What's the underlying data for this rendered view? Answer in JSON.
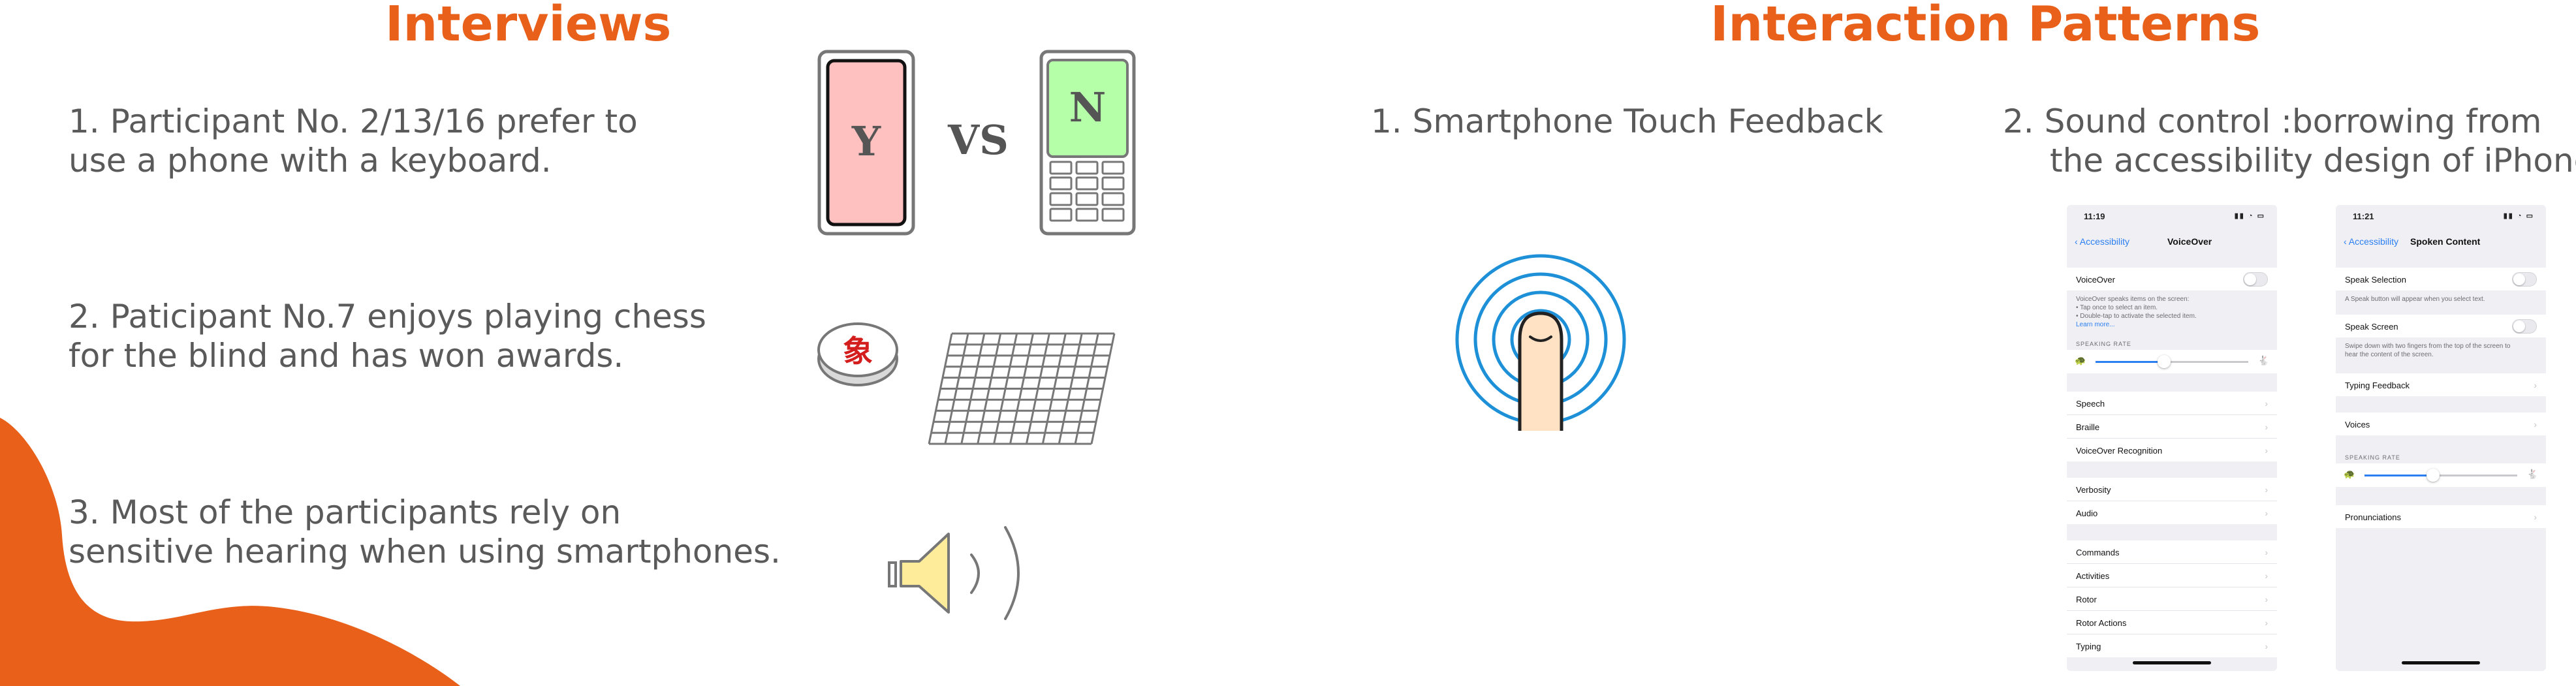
{
  "interviews": {
    "heading": "Interviews",
    "points": [
      {
        "line1": "1. Participant No. 2/13/16 prefer to",
        "line2": "use a phone with a keyboard."
      },
      {
        "line1": "2. Paticipant No.7 enjoys playing chess",
        "line2": "for the blind and has won awards."
      },
      {
        "line1": "3. Most of the participants rely on",
        "line2": "sensitive hearing when using smartphones."
      }
    ],
    "phone_compare": {
      "left_letter": "Y",
      "vs": "VS",
      "right_letter": "N"
    },
    "chess_piece_char": "象"
  },
  "patterns": {
    "heading": "Interaction Patterns",
    "point1": "1. Smartphone Touch Feedback",
    "point2": {
      "line1": "2. Sound control :borrowing from",
      "line2": "the accessibility design of iPhone"
    }
  },
  "voiceover_screen": {
    "time": "11:19",
    "back": "Accessibility",
    "title": "VoiceOver",
    "toggle_label": "VoiceOver",
    "desc_lines": [
      "VoiceOver speaks items on the screen:",
      "• Tap once to select an item.",
      "• Double-tap to activate the selected item."
    ],
    "learn_more": "Learn more...",
    "rate_header": "SPEAKING RATE",
    "rate_level": 0.45,
    "group1": [
      "Speech",
      "Braille",
      "VoiceOver Recognition"
    ],
    "group2": [
      "Verbosity",
      "Audio"
    ],
    "group3": [
      "Commands",
      "Activities",
      "Rotor",
      "Rotor Actions",
      "Typing"
    ]
  },
  "spoken_screen": {
    "time": "11:21",
    "back": "Accessibility",
    "title": "Spoken Content",
    "speak_selection": "Speak Selection",
    "speak_selection_desc": "A Speak button will appear when you select text.",
    "speak_screen": "Speak Screen",
    "speak_screen_desc": [
      "Swipe down with two fingers from the top of the screen to",
      "hear the content of the screen."
    ],
    "typing_feedback": "Typing Feedback",
    "voices": "Voices",
    "rate_header": "SPEAKING RATE",
    "rate_level": 0.45,
    "pronunciations": "Pronunciations"
  },
  "colors": {
    "accent": "#e8601a",
    "ios_blue": "#2b7ff2",
    "phone_pink": "#ffc0c0",
    "phone_green": "#b4ffa8",
    "ripple": "#1e90d8",
    "speaker": "#ffec9a"
  }
}
